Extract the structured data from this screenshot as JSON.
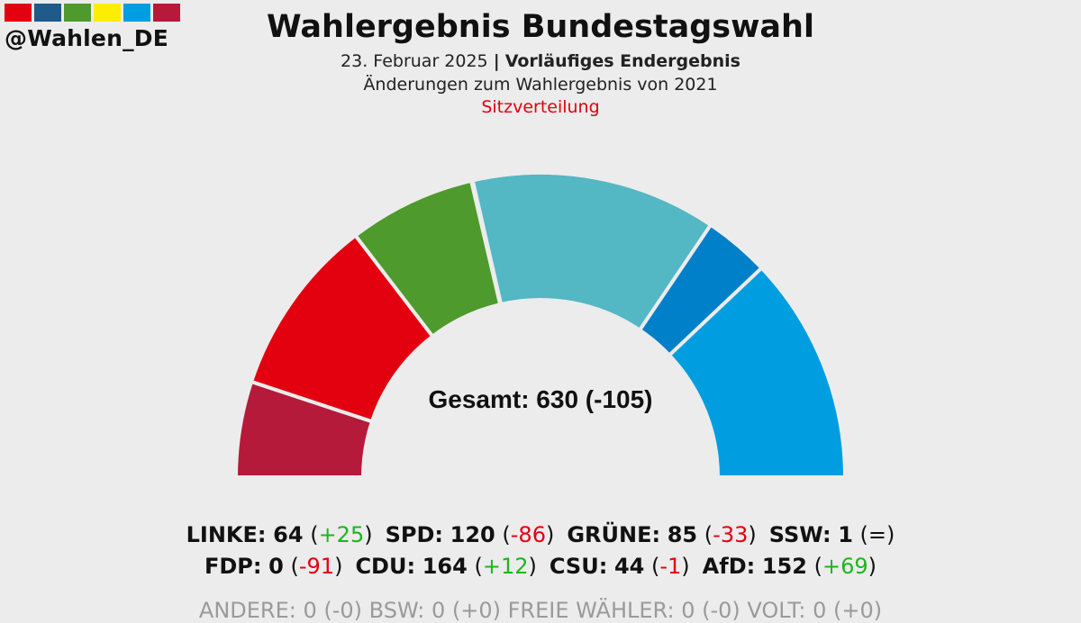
{
  "header": {
    "handle": "@Wahlen_DE",
    "swatch_colors": [
      "#e3000f",
      "#1e5b8a",
      "#4e9a2c",
      "#ffed00",
      "#009ee0",
      "#b61a3a"
    ],
    "title": "Wahlergebnis Bundestagswahl",
    "date": "23. Februar 2025",
    "separator": "|",
    "status": "Vorläufiges Endergebnis",
    "comparison": "Änderungen zum Wahlergebnis von 2021",
    "mode": "Sitzverteilung"
  },
  "total_label": "Gesamt: 630 (-105)",
  "chart_data": {
    "type": "parliament",
    "total_seats": 630,
    "total_change": -105,
    "parties": [
      {
        "name": "LINKE",
        "seats": 64,
        "change": "+25",
        "color": "#b61a3a"
      },
      {
        "name": "SPD",
        "seats": 120,
        "change": "-86",
        "color": "#e3000f"
      },
      {
        "name": "GRÜNE",
        "seats": 85,
        "change": "-33",
        "color": "#4e9a2c"
      },
      {
        "name": "SSW",
        "seats": 1,
        "change": "=",
        "color": "#003c8f"
      },
      {
        "name": "CDU",
        "seats": 164,
        "change": "+12",
        "color": "#53b7c4"
      },
      {
        "name": "CSU",
        "seats": 44,
        "change": "-1",
        "color": "#0080c9"
      },
      {
        "name": "AfD",
        "seats": 152,
        "change": "+69",
        "color": "#009ee0"
      },
      {
        "name": "FDP",
        "seats": 0,
        "change": "-91",
        "color": "#ffed00"
      }
    ],
    "legend_rows": [
      [
        "LINKE",
        "SPD",
        "GRÜNE",
        "SSW"
      ],
      [
        "FDP",
        "CDU",
        "CSU",
        "AfD"
      ]
    ]
  },
  "legend_row3_text": "ANDERE: 0 (-0)   BSW: 0 (+0)   FREIE WÄHLER: 0 (-0)   VOLT: 0 (+0)"
}
